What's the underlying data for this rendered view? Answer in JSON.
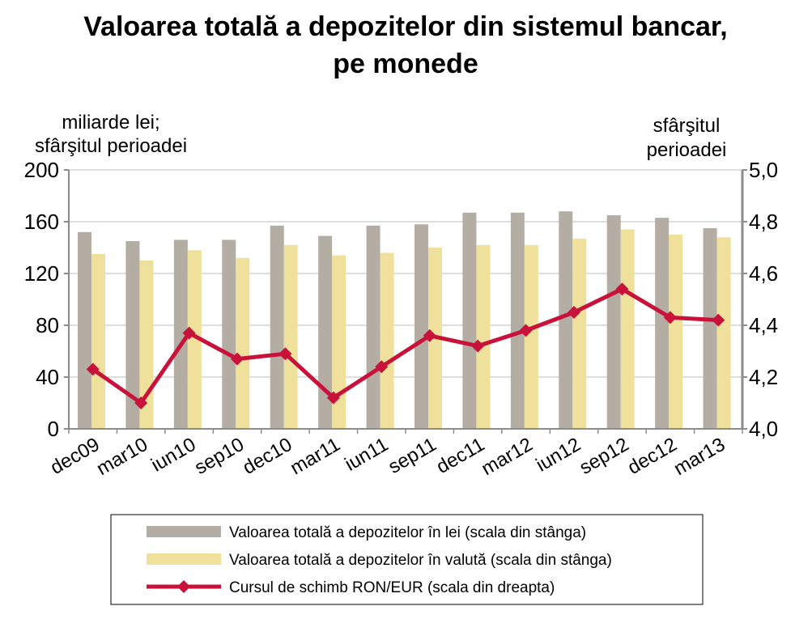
{
  "chart_data": {
    "type": "bar",
    "title_line1": "Valoarea totală a depozitelor din sistemul bancar,",
    "title_line2": "pe monede",
    "left_unit_line1": "miliarde lei;",
    "left_unit_line2": "sfârşitul perioadei",
    "right_unit_line1": "sfârşitul",
    "right_unit_line2": "perioadei",
    "categories": [
      "dec09",
      "mar10",
      "iun10",
      "sep10",
      "dec10",
      "mar11",
      "iun11",
      "sep11",
      "dec11",
      "mar12",
      "iun12",
      "sep12",
      "dec12",
      "mar13"
    ],
    "y_left": {
      "min": 0,
      "max": 200,
      "ticks": [
        "0",
        "40",
        "80",
        "120",
        "160",
        "200"
      ]
    },
    "y_right": {
      "min": 4.0,
      "max": 5.0,
      "ticks": [
        "4,0",
        "4,2",
        "4,4",
        "4,6",
        "4,8",
        "5,0"
      ]
    },
    "grid": true,
    "legend_position": "bottom",
    "series": [
      {
        "name": "Valoarea totală a depozitelor în lei (scala din stânga)",
        "kind": "bar",
        "axis": "left",
        "color": "#b3ada3",
        "values": [
          152,
          145,
          146,
          146,
          157,
          149,
          157,
          158,
          167,
          167,
          168,
          165,
          163,
          155
        ]
      },
      {
        "name": "Valoarea totală a depozitelor în valută (scala din stânga)",
        "kind": "bar",
        "axis": "left",
        "color": "#efe19c",
        "values": [
          135,
          130,
          138,
          132,
          142,
          134,
          136,
          140,
          142,
          142,
          147,
          154,
          150,
          148
        ]
      },
      {
        "name": "Cursul de schimb RON/EUR (scala din dreapta)",
        "kind": "line",
        "axis": "right",
        "color": "#c8123a",
        "values": [
          4.23,
          4.1,
          4.37,
          4.27,
          4.29,
          4.12,
          4.24,
          4.36,
          4.32,
          4.38,
          4.45,
          4.54,
          4.43,
          4.42
        ]
      }
    ]
  }
}
